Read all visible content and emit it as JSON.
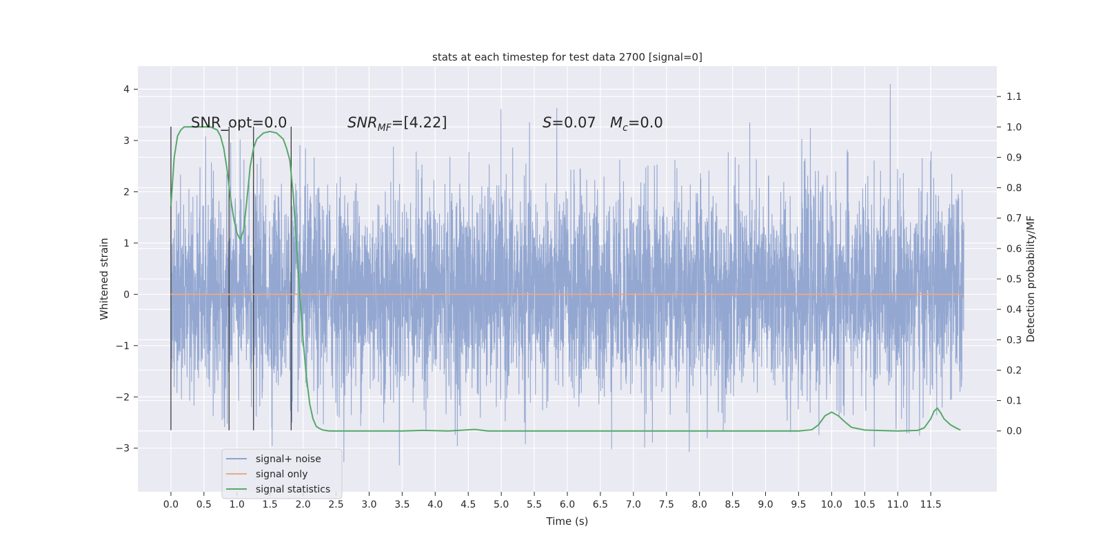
{
  "chart_data": {
    "type": "line",
    "title": "stats at each timestep for test data 2700 [signal=0]",
    "xlabel": "Time (s)",
    "ylabel": "Whitened strain",
    "y2label": "Detection probability/MF",
    "xlim": [
      -0.5,
      12.5
    ],
    "ylim": [
      -3.85,
      4.45
    ],
    "y2lim": [
      -0.2,
      1.2
    ],
    "xticks": [
      "0.0",
      "0.5",
      "1.0",
      "1.5",
      "2.0",
      "2.5",
      "3.0",
      "3.5",
      "4.0",
      "4.5",
      "5.0",
      "5.5",
      "6.0",
      "6.5",
      "7.0",
      "7.5",
      "8.0",
      "8.5",
      "9.0",
      "9.5",
      "10.0",
      "10.5",
      "11.0",
      "11.5"
    ],
    "yticks": [
      "−3",
      "−2",
      "−1",
      "0",
      "1",
      "2",
      "3",
      "4"
    ],
    "y2ticks": [
      "0.0",
      "0.1",
      "0.2",
      "0.3",
      "0.4",
      "0.5",
      "0.6",
      "0.7",
      "0.8",
      "0.9",
      "1.0",
      "1.1"
    ],
    "grid": true,
    "legend": {
      "placement": "lower-left",
      "entries": [
        {
          "label": "signal+ noise",
          "color": "#8ea3cf"
        },
        {
          "label": "signal only",
          "color": "#e8a98a"
        },
        {
          "label": "signal statistics",
          "color": "#55a868"
        }
      ]
    },
    "annotations": {
      "snr_opt": "SNR_opt=0.0",
      "snr_mf_main": "SNR",
      "snr_mf_sub": "MF",
      "snr_mf_value": "=[4.22]",
      "s_main": "S",
      "s_value": "=0.07",
      "mc_main": "M",
      "mc_sub": "c",
      "mc_value": "=0.0"
    },
    "series": [
      {
        "name": "signal+ noise",
        "color": "#8ea3cf",
        "duration_s": 12.0,
        "envelope": {
          "max_peak": 4.1,
          "min_peak": -3.5
        }
      },
      {
        "name": "signal only",
        "color": "#e8a98a",
        "x": [
          0.0,
          12.0
        ],
        "y": [
          0.0,
          0.0
        ]
      },
      {
        "name": "signal statistics",
        "color": "#55a868",
        "axis": "right",
        "x": [
          0.0,
          0.05,
          0.1,
          0.15,
          0.2,
          0.3,
          0.4,
          0.5,
          0.6,
          0.7,
          0.75,
          0.8,
          0.85,
          0.9,
          0.95,
          1.0,
          1.05,
          1.1,
          1.15,
          1.2,
          1.25,
          1.3,
          1.4,
          1.5,
          1.6,
          1.7,
          1.75,
          1.8,
          1.85,
          1.9,
          1.95,
          2.0,
          2.05,
          2.1,
          2.15,
          2.2,
          2.25,
          2.3,
          2.4,
          2.5,
          3.0,
          3.5,
          3.8,
          4.2,
          4.6,
          4.8,
          5.0,
          6.0,
          7.0,
          8.0,
          9.0,
          9.5,
          9.7,
          9.8,
          9.9,
          10.0,
          10.1,
          10.2,
          10.3,
          10.5,
          11.0,
          11.3,
          11.4,
          11.5,
          11.55,
          11.6,
          11.65,
          11.7,
          11.8,
          11.9,
          11.95
        ],
        "y": [
          0.74,
          0.9,
          0.97,
          0.99,
          1.0,
          1.0,
          1.0,
          1.0,
          1.0,
          0.99,
          0.97,
          0.93,
          0.86,
          0.77,
          0.7,
          0.65,
          0.63,
          0.66,
          0.76,
          0.87,
          0.93,
          0.96,
          0.98,
          0.985,
          0.98,
          0.96,
          0.93,
          0.89,
          0.78,
          0.62,
          0.45,
          0.3,
          0.18,
          0.09,
          0.04,
          0.015,
          0.008,
          0.003,
          0.0,
          0.0,
          0.0,
          0.0,
          0.002,
          0.0,
          0.005,
          0.0,
          0.0,
          0.0,
          0.0,
          0.0,
          0.0,
          0.0,
          0.004,
          0.02,
          0.05,
          0.062,
          0.05,
          0.03,
          0.012,
          0.003,
          0.0,
          0.002,
          0.01,
          0.04,
          0.065,
          0.075,
          0.06,
          0.04,
          0.02,
          0.008,
          0.003
        ]
      }
    ],
    "vlines": [
      0.0,
      0.88,
      1.25,
      1.82
    ]
  }
}
